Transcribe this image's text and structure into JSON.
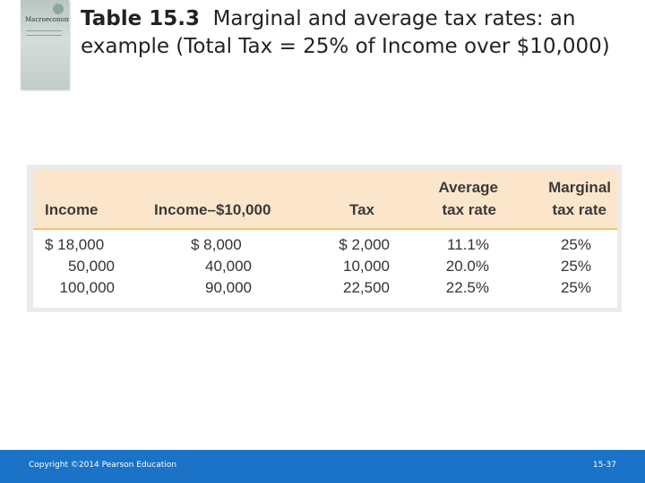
{
  "book_cover": {
    "title": "Macroeconomics",
    "accent": "#b9c6c1"
  },
  "slide": {
    "title_number": "Table 15.3",
    "title_text": "Marginal and average tax rates: an example (Total Tax = 25% of Income over $10,000)"
  },
  "table": {
    "headers": {
      "income": "Income",
      "income_minus": "Income–$10,000",
      "tax": "Tax",
      "average_line1": "Average",
      "average_line2": "tax rate",
      "marginal_line1": "Marginal",
      "marginal_line2": "tax rate"
    },
    "rows": [
      [
        "$ 18,000",
        "$ 8,000",
        "$ 2,000",
        "11.1%",
        "25%"
      ],
      [
        "50,000",
        "40,000",
        "10,000",
        "20.0%",
        "25%"
      ],
      [
        "100,000",
        "90,000",
        "22,500",
        "22.5%",
        "25%"
      ]
    ],
    "header_color": "#fce6cb",
    "rule_color": "#f2c17c"
  },
  "footer": {
    "copyright": "Copyright ©2014 Pearson Education",
    "page_number": "15-37",
    "color": "#1a73c6"
  }
}
